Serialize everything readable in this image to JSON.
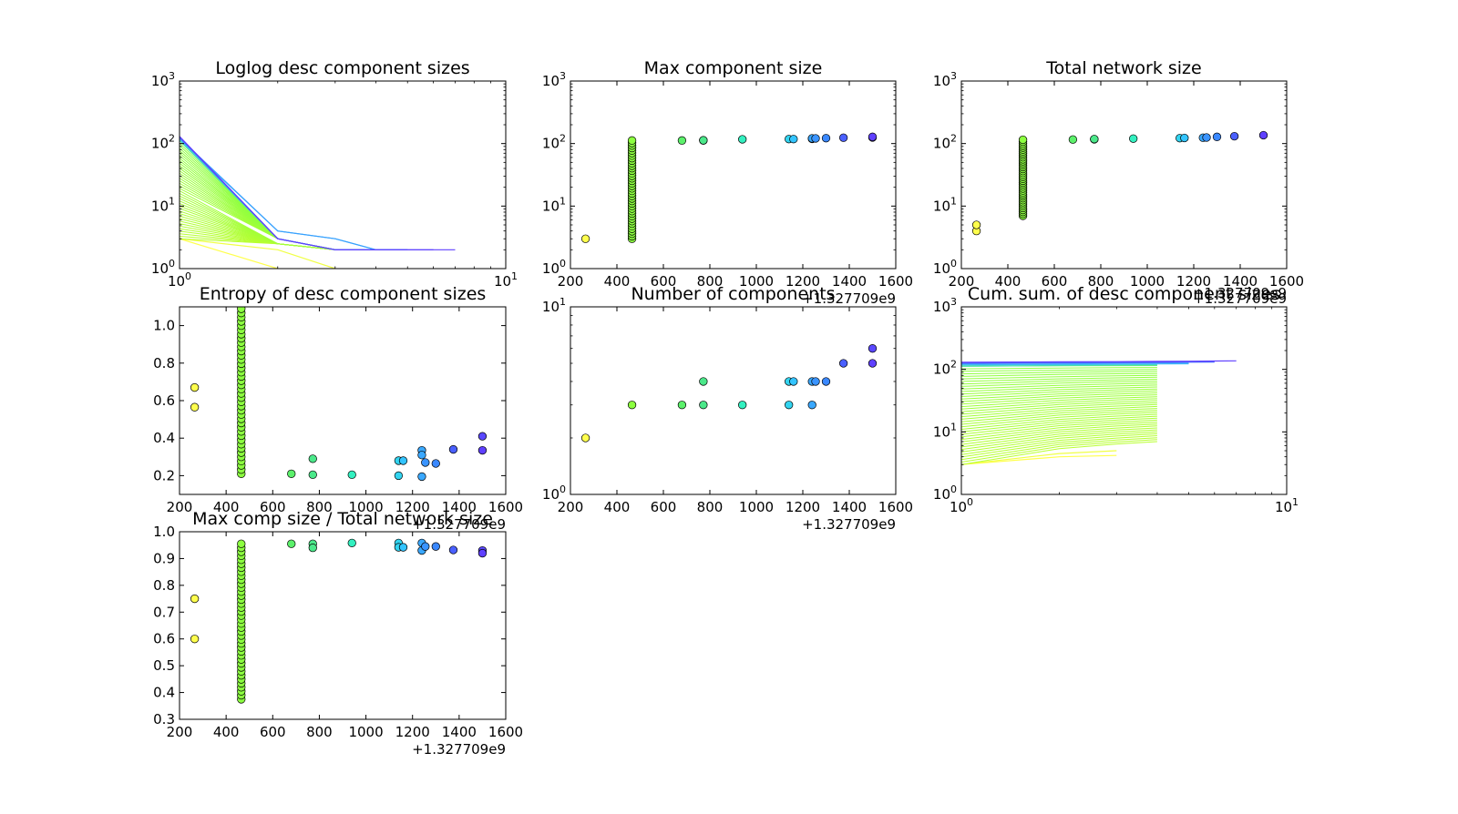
{
  "chart_data": [
    {
      "id": "p1",
      "type": "line",
      "title": "Loglog desc component sizes",
      "xscale": "log",
      "yscale": "log",
      "xlim": [
        1,
        10
      ],
      "ylim": [
        1,
        1000
      ],
      "xticks": [
        1,
        10
      ],
      "yticks": [
        1,
        10,
        100,
        1000
      ],
      "xtick_labels": [
        {
          "b": "10",
          "e": "0"
        },
        {
          "b": "10",
          "e": "1"
        }
      ],
      "ytick_labels": [
        {
          "b": "10",
          "e": "0"
        },
        {
          "b": "10",
          "e": "1"
        },
        {
          "b": "10",
          "e": "2"
        },
        {
          "b": "10",
          "e": "3"
        }
      ],
      "colormap": [
        "#ffff4d",
        "#8cff40",
        "#33ffb8",
        "#33b8ff",
        "#5f3fff"
      ],
      "series_note": "one line per snapshot of descending component sizes",
      "series": [
        {
          "color": "#ffff4d",
          "x": [
            1,
            2,
            3
          ],
          "y": [
            3,
            1,
            0.6
          ]
        },
        {
          "color": "#f0ff45",
          "x": [
            1,
            2,
            3
          ],
          "y": [
            3,
            2,
            1
          ]
        },
        {
          "color": "#8cff40",
          "fan": true,
          "x": [
            1,
            2,
            3,
            4
          ],
          "y": [
            112,
            3,
            2,
            2
          ],
          "start_min": 3,
          "start_max": 112,
          "count": 40
        },
        {
          "color": "#4be3a8",
          "x": [
            1,
            2,
            3,
            4
          ],
          "y": [
            112,
            3,
            2,
            2
          ]
        },
        {
          "color": "#3fd0d0",
          "x": [
            1,
            2,
            3,
            4
          ],
          "y": [
            118,
            3,
            2,
            2
          ]
        },
        {
          "color": "#3ab8f5",
          "x": [
            1,
            2,
            3,
            4,
            5
          ],
          "y": [
            118,
            4,
            3,
            2,
            2
          ]
        },
        {
          "color": "#3aa0ff",
          "x": [
            1,
            2,
            3,
            4,
            5
          ],
          "y": [
            123,
            4,
            3,
            2,
            2
          ]
        },
        {
          "color": "#4878ff",
          "x": [
            1,
            2,
            3,
            4,
            5
          ],
          "y": [
            125,
            3,
            2,
            2,
            2
          ]
        },
        {
          "color": "#5550ff",
          "x": [
            1,
            2,
            3,
            4,
            5,
            6
          ],
          "y": [
            128,
            3,
            2,
            2,
            2,
            2
          ]
        },
        {
          "color": "#6040ff",
          "x": [
            1,
            2,
            3,
            4,
            5,
            6,
            7
          ],
          "y": [
            130,
            3,
            2,
            2,
            2,
            2,
            2
          ]
        }
      ]
    },
    {
      "id": "p2",
      "type": "scatter",
      "title": "Max component size",
      "xscale": "linear",
      "yscale": "log",
      "xlim": [
        200,
        1600
      ],
      "ylim": [
        1,
        1000
      ],
      "xticks": [
        200,
        400,
        600,
        800,
        1000,
        1200,
        1400,
        1600
      ],
      "yticks": [
        1,
        10,
        100,
        1000
      ],
      "ytick_labels": [
        {
          "b": "10",
          "e": "0"
        },
        {
          "b": "10",
          "e": "1"
        },
        {
          "b": "10",
          "e": "2"
        },
        {
          "b": "10",
          "e": "3"
        }
      ],
      "offset_label": "+1.327709e9",
      "points": [
        {
          "x": 265,
          "y": 3,
          "c": "#ffff4d"
        },
        {
          "x": 465,
          "ymin": 3,
          "ymax": 112,
          "count": 40,
          "c": "#8cff40"
        },
        {
          "x": 680,
          "y": 112,
          "c": "#5cf06b"
        },
        {
          "x": 772,
          "y": 112,
          "c": "#4be88a"
        },
        {
          "x": 772,
          "y": 113,
          "c": "#4be88a"
        },
        {
          "x": 940,
          "y": 117,
          "c": "#33f0c0"
        },
        {
          "x": 1140,
          "y": 118,
          "c": "#33d4f0"
        },
        {
          "x": 1160,
          "y": 118,
          "c": "#33c4ff"
        },
        {
          "x": 1240,
          "y": 119,
          "c": "#3aa8ff"
        },
        {
          "x": 1240,
          "y": 121,
          "c": "#3aa8ff"
        },
        {
          "x": 1255,
          "y": 121,
          "c": "#3a94ff"
        },
        {
          "x": 1300,
          "y": 122,
          "c": "#3a88ff"
        },
        {
          "x": 1375,
          "y": 124,
          "c": "#4a60ff"
        },
        {
          "x": 1500,
          "y": 125,
          "c": "#5a48ff"
        },
        {
          "x": 1500,
          "y": 128,
          "c": "#5f40ff"
        }
      ]
    },
    {
      "id": "p3",
      "type": "scatter",
      "title": "Total network size",
      "xscale": "linear",
      "yscale": "log",
      "xlim": [
        200,
        1600
      ],
      "ylim": [
        1,
        1000
      ],
      "xticks": [
        200,
        400,
        600,
        800,
        1000,
        1200,
        1400,
        1600
      ],
      "yticks": [
        1,
        10,
        100,
        1000
      ],
      "ytick_labels": [
        {
          "b": "10",
          "e": "0"
        },
        {
          "b": "10",
          "e": "1"
        },
        {
          "b": "10",
          "e": "2"
        },
        {
          "b": "10",
          "e": "3"
        }
      ],
      "offset_label": "+1.327709e9",
      "points": [
        {
          "x": 265,
          "y": 4,
          "c": "#ffff4d"
        },
        {
          "x": 265,
          "y": 5,
          "c": "#ffff4d"
        },
        {
          "x": 465,
          "ymin": 7,
          "ymax": 115,
          "count": 40,
          "c": "#8cff40"
        },
        {
          "x": 680,
          "y": 116,
          "c": "#5cf06b"
        },
        {
          "x": 772,
          "y": 117,
          "c": "#4be88a"
        },
        {
          "x": 772,
          "y": 118,
          "c": "#4be88a"
        },
        {
          "x": 940,
          "y": 120,
          "c": "#33f0c0"
        },
        {
          "x": 1140,
          "y": 122,
          "c": "#33d4f0"
        },
        {
          "x": 1160,
          "y": 123,
          "c": "#33c4ff"
        },
        {
          "x": 1240,
          "y": 124,
          "c": "#3aa8ff"
        },
        {
          "x": 1255,
          "y": 125,
          "c": "#3a94ff"
        },
        {
          "x": 1300,
          "y": 128,
          "c": "#3a88ff"
        },
        {
          "x": 1375,
          "y": 131,
          "c": "#4a60ff"
        },
        {
          "x": 1500,
          "y": 136,
          "c": "#5f40ff"
        }
      ]
    },
    {
      "id": "p4",
      "type": "scatter",
      "title": "Entropy of desc component sizes",
      "xscale": "linear",
      "yscale": "linear",
      "xlim": [
        200,
        1600
      ],
      "ylim": [
        0.1,
        1.1
      ],
      "xticks": [
        200,
        400,
        600,
        800,
        1000,
        1200,
        1400,
        1600
      ],
      "yticks": [
        0.2,
        0.4,
        0.6,
        0.8,
        1.0
      ],
      "ytick_labels": [
        "0.2",
        "0.4",
        "0.6",
        "0.8",
        "1.0"
      ],
      "offset_label": "+1.327709e9",
      "points": [
        {
          "x": 265,
          "y": 0.67,
          "c": "#ffff4d"
        },
        {
          "x": 265,
          "y": 0.565,
          "c": "#ffff4d"
        },
        {
          "x": 465,
          "ymin": 0.21,
          "ymax": 1.09,
          "count": 40,
          "c": "#8cff40"
        },
        {
          "x": 680,
          "y": 0.21,
          "c": "#5cf06b"
        },
        {
          "x": 772,
          "y": 0.29,
          "c": "#4be88a"
        },
        {
          "x": 772,
          "y": 0.205,
          "c": "#4be88a"
        },
        {
          "x": 940,
          "y": 0.205,
          "c": "#33f0c0"
        },
        {
          "x": 1140,
          "y": 0.2,
          "c": "#33d4f0"
        },
        {
          "x": 1140,
          "y": 0.28,
          "c": "#33d4f0"
        },
        {
          "x": 1160,
          "y": 0.28,
          "c": "#33c4ff"
        },
        {
          "x": 1240,
          "y": 0.335,
          "c": "#3aa8ff"
        },
        {
          "x": 1240,
          "y": 0.31,
          "c": "#3aa8ff"
        },
        {
          "x": 1240,
          "y": 0.195,
          "c": "#3aa8ff"
        },
        {
          "x": 1255,
          "y": 0.27,
          "c": "#3a94ff"
        },
        {
          "x": 1300,
          "y": 0.265,
          "c": "#3a88ff"
        },
        {
          "x": 1375,
          "y": 0.34,
          "c": "#4a60ff"
        },
        {
          "x": 1500,
          "y": 0.41,
          "c": "#5a48ff"
        },
        {
          "x": 1500,
          "y": 0.335,
          "c": "#5f40ff"
        }
      ]
    },
    {
      "id": "p5",
      "type": "scatter",
      "title": "Number of components",
      "xscale": "linear",
      "yscale": "log",
      "xlim": [
        200,
        1600
      ],
      "ylim": [
        1,
        10
      ],
      "xticks": [
        200,
        400,
        600,
        800,
        1000,
        1200,
        1400,
        1600
      ],
      "yticks": [
        1,
        10
      ],
      "ytick_labels": [
        {
          "b": "10",
          "e": "0"
        },
        {
          "b": "10",
          "e": "1"
        }
      ],
      "offset_label": "+1.327709e9",
      "points": [
        {
          "x": 265,
          "y": 2,
          "c": "#ffff4d"
        },
        {
          "x": 465,
          "y": 3,
          "c": "#8cff40"
        },
        {
          "x": 680,
          "y": 3,
          "c": "#5cf06b"
        },
        {
          "x": 772,
          "y": 3,
          "c": "#4be88a"
        },
        {
          "x": 772,
          "y": 4,
          "c": "#4be88a"
        },
        {
          "x": 940,
          "y": 3,
          "c": "#33f0c0"
        },
        {
          "x": 1140,
          "y": 3,
          "c": "#33d4f0"
        },
        {
          "x": 1140,
          "y": 4,
          "c": "#33d4f0"
        },
        {
          "x": 1160,
          "y": 4,
          "c": "#33c4ff"
        },
        {
          "x": 1240,
          "y": 3,
          "c": "#3aa8ff"
        },
        {
          "x": 1240,
          "y": 4,
          "c": "#3aa8ff"
        },
        {
          "x": 1255,
          "y": 4,
          "c": "#3a94ff"
        },
        {
          "x": 1300,
          "y": 4,
          "c": "#3a88ff"
        },
        {
          "x": 1375,
          "y": 5,
          "c": "#4a60ff"
        },
        {
          "x": 1500,
          "y": 6,
          "c": "#5a48ff"
        },
        {
          "x": 1500,
          "y": 5,
          "c": "#5f40ff"
        }
      ]
    },
    {
      "id": "p6",
      "type": "line",
      "title": "Cum. sum. of desc component sizes",
      "xscale": "log",
      "yscale": "log",
      "xlim": [
        1,
        10
      ],
      "ylim": [
        1,
        1000
      ],
      "xticks": [
        1,
        10
      ],
      "yticks": [
        1,
        10,
        100,
        1000
      ],
      "xtick_labels": [
        {
          "b": "10",
          "e": "0"
        },
        {
          "b": "10",
          "e": "1"
        }
      ],
      "ytick_labels": [
        {
          "b": "10",
          "e": "0"
        },
        {
          "b": "10",
          "e": "1"
        },
        {
          "b": "10",
          "e": "2"
        },
        {
          "b": "10",
          "e": "3"
        }
      ],
      "offset_label": "+1.327709e9",
      "series": [
        {
          "color": "#ffff4d",
          "x": [
            1,
            2,
            3
          ],
          "y": [
            3,
            4,
            4.2
          ]
        },
        {
          "color": "#f0ff45",
          "x": [
            1,
            2,
            3
          ],
          "y": [
            3,
            4.5,
            5
          ]
        },
        {
          "color": "#8cff40",
          "fan": true,
          "x": [
            1,
            2,
            3,
            4
          ],
          "start_min": 3,
          "start_max": 112,
          "end_min": 7,
          "end_max": 115,
          "count": 40
        },
        {
          "color": "#4be3a8",
          "x": [
            1,
            2,
            3,
            4
          ],
          "y": [
            112,
            115,
            116,
            117
          ]
        },
        {
          "color": "#3fd0d0",
          "x": [
            1,
            2,
            3,
            4
          ],
          "y": [
            117,
            119,
            120,
            121
          ]
        },
        {
          "color": "#3ab8f5",
          "x": [
            1,
            2,
            3,
            4,
            5
          ],
          "y": [
            118,
            120,
            121,
            122,
            123
          ]
        },
        {
          "color": "#3aa0ff",
          "x": [
            1,
            2,
            3,
            4,
            5
          ],
          "y": [
            123,
            125,
            126,
            127,
            128
          ]
        },
        {
          "color": "#4878ff",
          "x": [
            1,
            2,
            3,
            4,
            5,
            6
          ],
          "y": [
            125,
            127,
            128,
            129,
            130,
            131
          ]
        },
        {
          "color": "#5550ff",
          "x": [
            1,
            2,
            3,
            4,
            5,
            6
          ],
          "y": [
            128,
            130,
            131,
            132,
            133,
            134
          ]
        },
        {
          "color": "#6040ff",
          "x": [
            1,
            2,
            3,
            4,
            5,
            6,
            7
          ],
          "y": [
            130,
            132,
            133,
            134,
            135,
            136,
            137
          ]
        }
      ]
    },
    {
      "id": "p7",
      "type": "scatter",
      "title": "Max comp size / Total network size",
      "xscale": "linear",
      "yscale": "linear",
      "xlim": [
        200,
        1600
      ],
      "ylim": [
        0.3,
        1.0
      ],
      "xticks": [
        200,
        400,
        600,
        800,
        1000,
        1200,
        1400,
        1600
      ],
      "yticks": [
        0.3,
        0.4,
        0.5,
        0.6,
        0.7,
        0.8,
        0.9,
        1.0
      ],
      "ytick_labels": [
        "0.3",
        "0.4",
        "0.5",
        "0.6",
        "0.7",
        "0.8",
        "0.9",
        "1.0"
      ],
      "offset_label": "+1.327709e9",
      "points": [
        {
          "x": 265,
          "y": 0.75,
          "c": "#ffff4d"
        },
        {
          "x": 265,
          "y": 0.6,
          "c": "#ffff4d"
        },
        {
          "x": 465,
          "ymin": 0.375,
          "ymax": 0.955,
          "count": 40,
          "c": "#8cff40"
        },
        {
          "x": 680,
          "y": 0.955,
          "c": "#5cf06b"
        },
        {
          "x": 772,
          "y": 0.955,
          "c": "#4be88a"
        },
        {
          "x": 772,
          "y": 0.94,
          "c": "#4be88a"
        },
        {
          "x": 940,
          "y": 0.958,
          "c": "#33f0c0"
        },
        {
          "x": 1140,
          "y": 0.958,
          "c": "#33d4f0"
        },
        {
          "x": 1140,
          "y": 0.942,
          "c": "#33d4f0"
        },
        {
          "x": 1160,
          "y": 0.942,
          "c": "#33c4ff"
        },
        {
          "x": 1240,
          "y": 0.958,
          "c": "#3aa8ff"
        },
        {
          "x": 1240,
          "y": 0.93,
          "c": "#3aa8ff"
        },
        {
          "x": 1255,
          "y": 0.945,
          "c": "#3a94ff"
        },
        {
          "x": 1300,
          "y": 0.945,
          "c": "#3a88ff"
        },
        {
          "x": 1375,
          "y": 0.932,
          "c": "#4a60ff"
        },
        {
          "x": 1500,
          "y": 0.93,
          "c": "#5a48ff"
        },
        {
          "x": 1500,
          "y": 0.92,
          "c": "#5f40ff"
        }
      ]
    }
  ]
}
